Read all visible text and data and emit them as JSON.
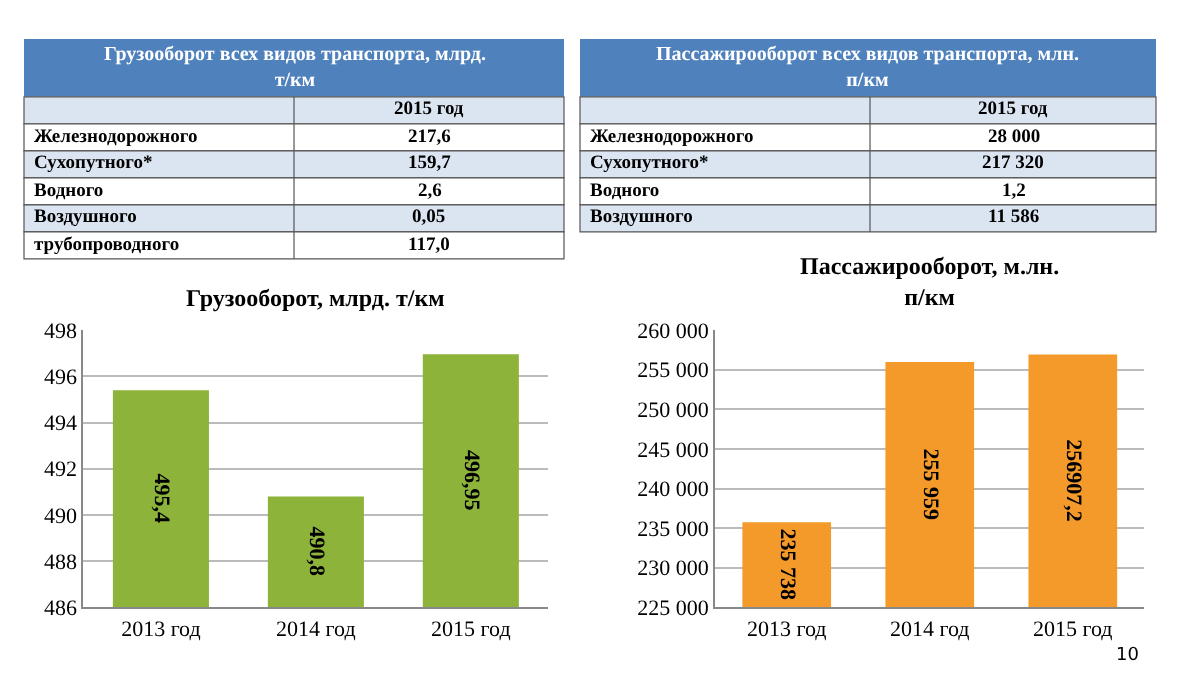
{
  "chart_data": [
    {
      "type": "other",
      "title": "Грузооборот всех видов транспорта, млрд. т/км",
      "xlabel": "2015 год",
      "categories": [
        "Железнодорожного",
        "Сухопутного*",
        "Водного",
        "Воздушного",
        "трубопроводного"
      ],
      "value_labels": [
        "217,6",
        "159,7",
        "2,6",
        "0,05",
        "117,0"
      ]
    },
    {
      "type": "other",
      "title": "Пассажирооборот всех видов транспорта, млн. п/км",
      "xlabel": "2015 год",
      "categories": [
        "Железнодорожного",
        "Сухопутного*",
        "Водного",
        "Воздушного"
      ],
      "value_labels": [
        "28 000",
        "217 320",
        "1,2",
        "11 586"
      ]
    },
    {
      "type": "bar",
      "title": "Грузооборот, млрд. т/км",
      "categories": [
        "2013 год",
        "2014 год",
        "2015 год"
      ],
      "values": [
        495.4,
        490.8,
        496.95
      ],
      "value_labels": [
        "495,4",
        "490,8",
        "496,95"
      ],
      "color": "#8db33a",
      "ylim": [
        486,
        498
      ],
      "yticks": [
        486,
        488,
        490,
        492,
        494,
        496,
        498
      ],
      "grid": "y"
    },
    {
      "type": "bar",
      "title": "Пассажирооборот, м.лн. п/км",
      "categories": [
        "2013 год",
        "2014 год",
        "2015 год"
      ],
      "values": [
        235738,
        255959,
        256907.2
      ],
      "value_labels": [
        "235 738",
        "255 959",
        "256907,2"
      ],
      "color": "#f39a2b",
      "ylim": [
        225000,
        260000
      ],
      "yticks": [
        {
          "value": 225000,
          "label": "225 000"
        },
        {
          "value": 230000,
          "label": "230 000"
        },
        {
          "value": 235000,
          "label": "235 000"
        },
        {
          "value": 240000,
          "label": "240 000"
        },
        {
          "value": 245000,
          "label": "245 000"
        },
        {
          "value": 250000,
          "label": "250 000"
        },
        {
          "value": 255000,
          "label": "255 000"
        },
        {
          "value": 260000,
          "label": "260 000"
        }
      ],
      "grid": "y",
      "annotations": [
        "10"
      ]
    }
  ]
}
